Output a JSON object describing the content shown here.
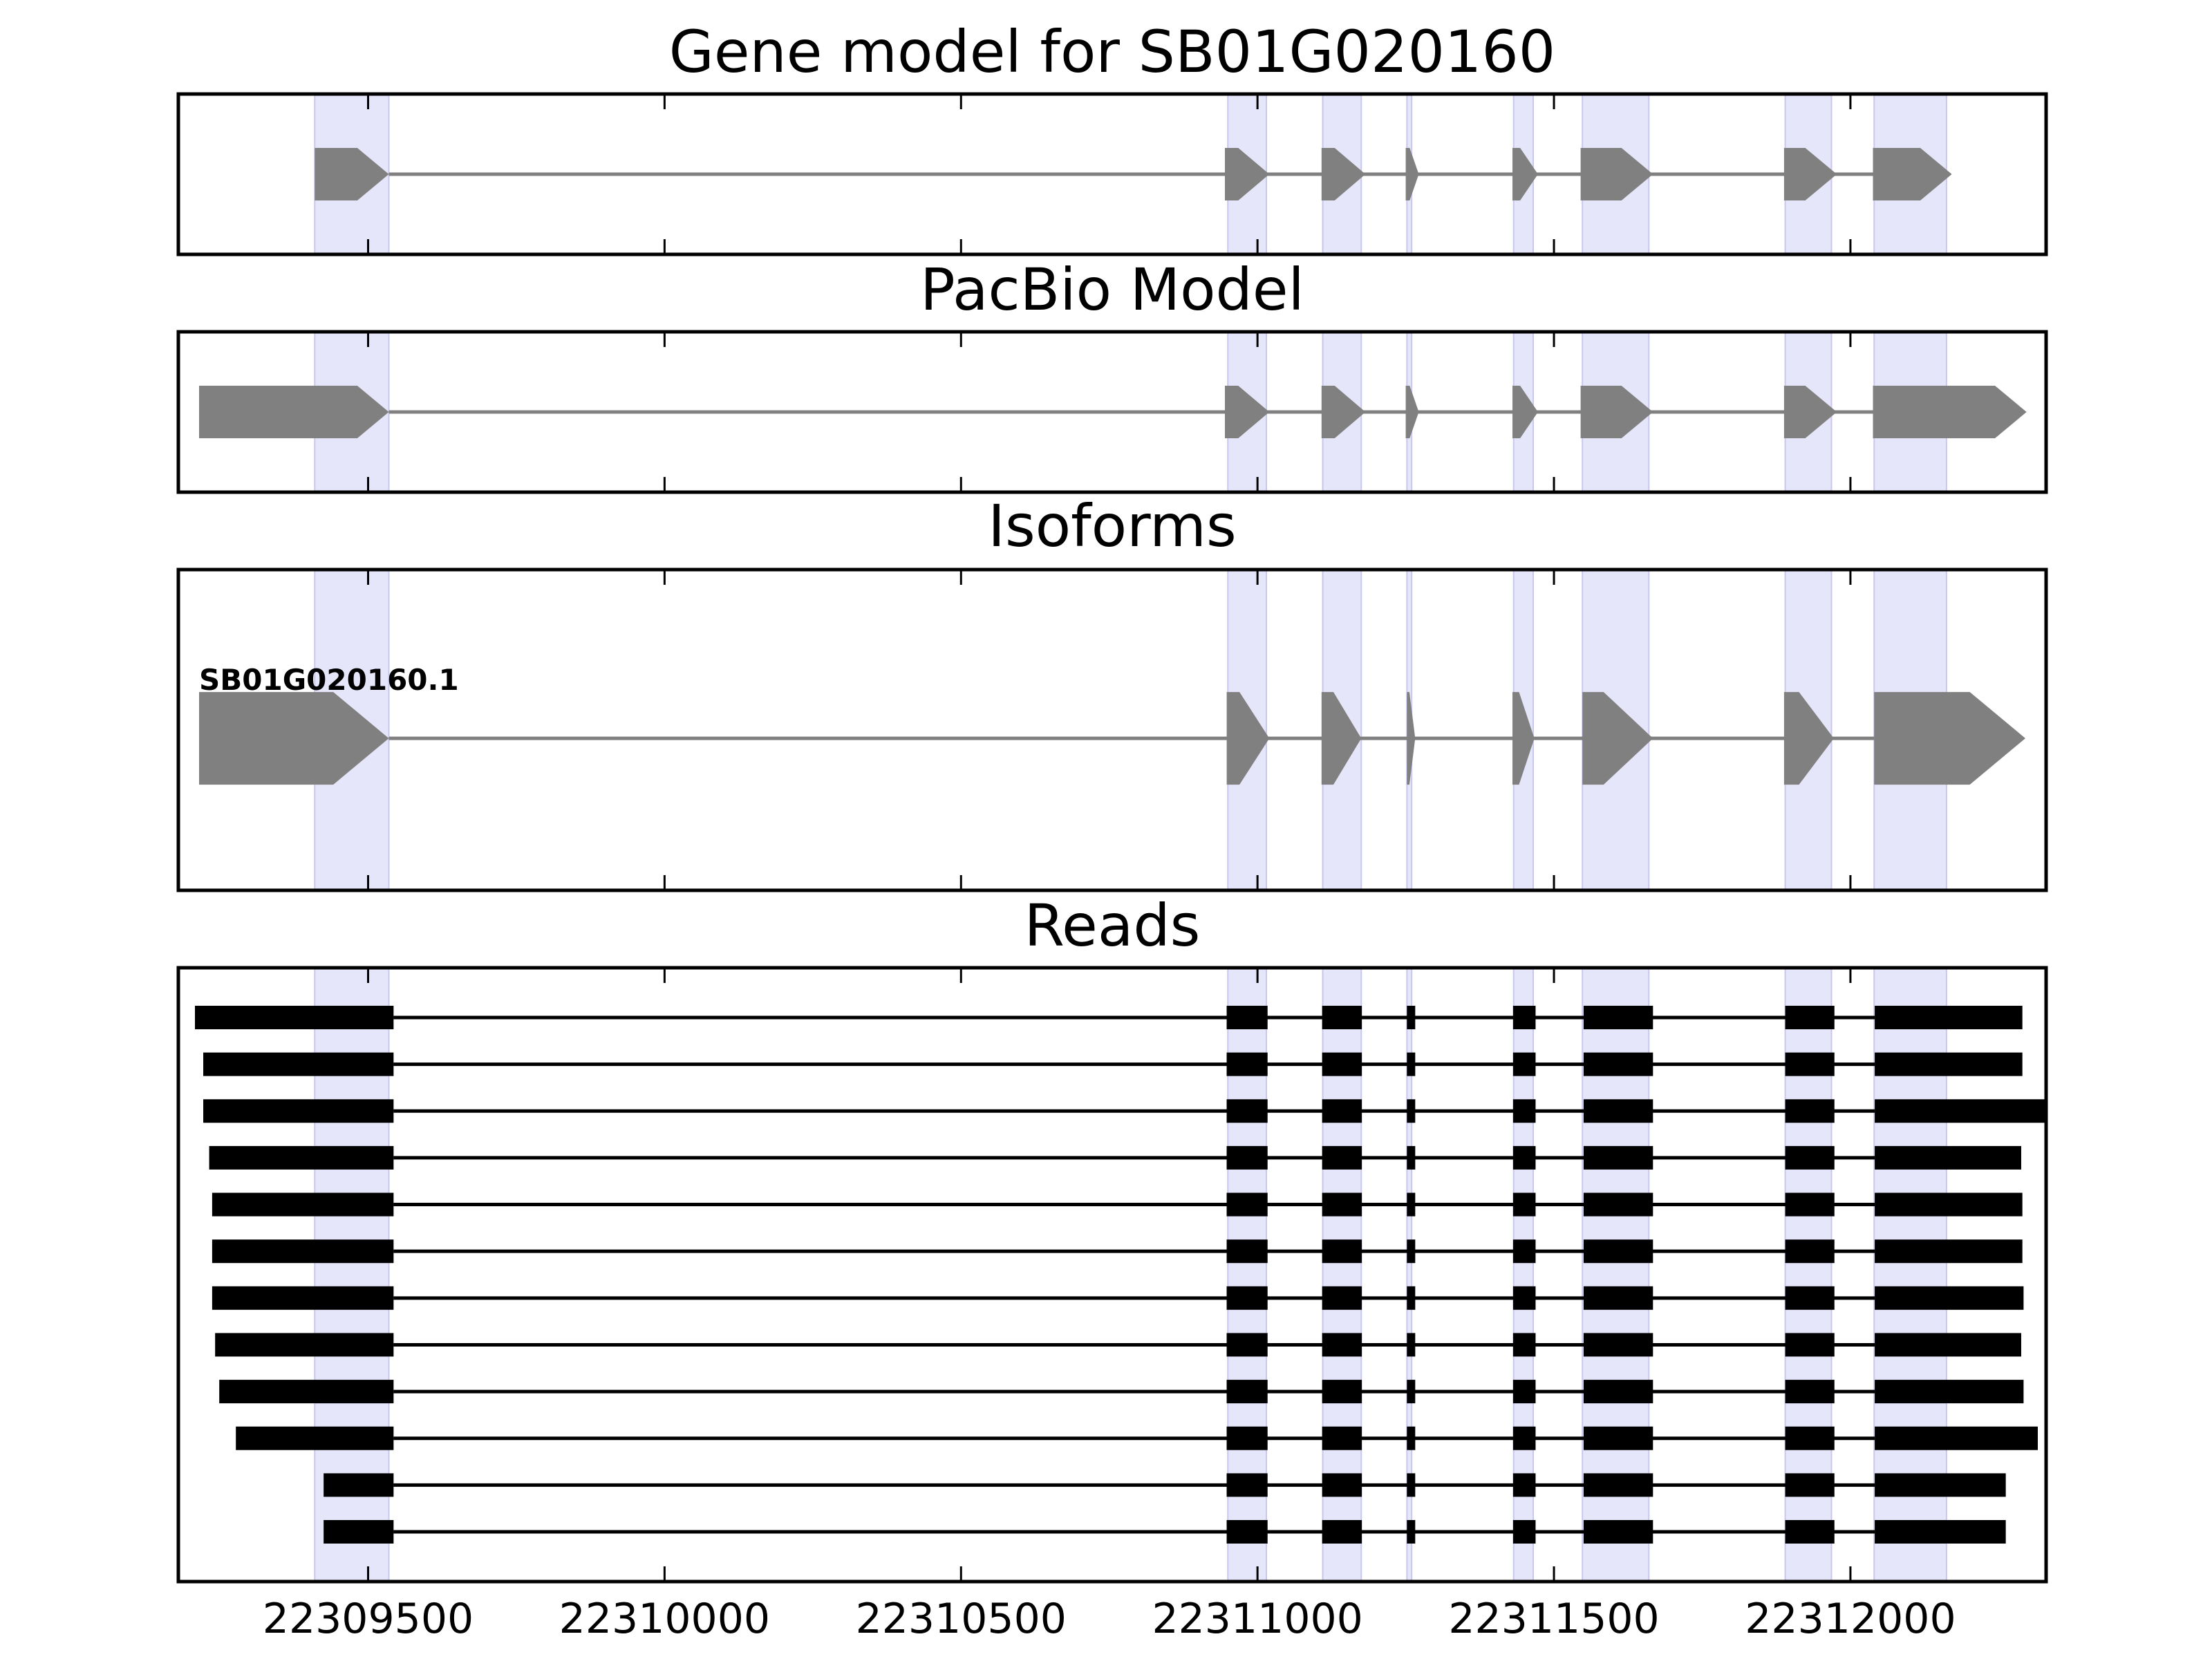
{
  "chart_data": {
    "type": "gene-track",
    "xlim": [
      22309180,
      22312330
    ],
    "x_ticks": [
      22309500,
      22310000,
      22310500,
      22311000,
      22311500,
      22312000
    ],
    "x_tick_labels": [
      "22309500",
      "22310000",
      "22310500",
      "22311000",
      "22311500",
      "22312000"
    ],
    "strand": "+",
    "colors": {
      "highlight": "#e6e6fa",
      "model_fill": "#808080",
      "read_fill": "#000000",
      "intron": "#808080"
    },
    "highlight_regions": [
      [
        22309410,
        22309535
      ],
      [
        22310950,
        22311015
      ],
      [
        22311110,
        22311175
      ],
      [
        22311252,
        22311260
      ],
      [
        22311432,
        22311465
      ],
      [
        22311548,
        22311660
      ],
      [
        22311890,
        22311968
      ],
      [
        22312040,
        22312162
      ]
    ],
    "panels": [
      {
        "title": "Gene model for SB01G020160",
        "kind": "model",
        "exons": [
          [
            22309410,
            22309535
          ],
          [
            22310945,
            22311020
          ],
          [
            22311108,
            22311182
          ],
          [
            22311250,
            22311272
          ],
          [
            22311430,
            22311473
          ],
          [
            22311545,
            22311667
          ],
          [
            22311888,
            22311977
          ],
          [
            22312038,
            22312171
          ]
        ]
      },
      {
        "title": "PacBio Model",
        "kind": "model",
        "exons": [
          [
            22309215,
            22309535
          ],
          [
            22310945,
            22311020
          ],
          [
            22311108,
            22311182
          ],
          [
            22311250,
            22311272
          ],
          [
            22311430,
            22311473
          ],
          [
            22311545,
            22311667
          ],
          [
            22311888,
            22311977
          ],
          [
            22312038,
            22312297
          ]
        ]
      },
      {
        "title": "Isoforms",
        "kind": "isoforms",
        "isoforms": [
          {
            "name": "SB01G020160.1",
            "exons": [
              [
                22309215,
                22309535
              ],
              [
                22310948,
                22311020
              ],
              [
                22311108,
                22311175
              ],
              [
                22311252,
                22311266
              ],
              [
                22311430,
                22311467
              ],
              [
                22311548,
                22311667
              ],
              [
                22311888,
                22311972
              ],
              [
                22312040,
                22312295
              ]
            ]
          }
        ]
      },
      {
        "title": "Reads",
        "kind": "reads",
        "reads": [
          [
            [
              22309208,
              22309543
            ],
            [
              22310948,
              22311017
            ],
            [
              22311109,
              22311176
            ],
            [
              22311252,
              22311266
            ],
            [
              22311431,
              22311469
            ],
            [
              22311550,
              22311667
            ],
            [
              22311890,
              22311973
            ],
            [
              22312041,
              22312290
            ]
          ],
          [
            [
              22309222,
              22309543
            ],
            [
              22310948,
              22311017
            ],
            [
              22311109,
              22311176
            ],
            [
              22311252,
              22311266
            ],
            [
              22311431,
              22311469
            ],
            [
              22311550,
              22311667
            ],
            [
              22311890,
              22311973
            ],
            [
              22312041,
              22312290
            ]
          ],
          [
            [
              22309222,
              22309543
            ],
            [
              22310948,
              22311017
            ],
            [
              22311109,
              22311176
            ],
            [
              22311252,
              22311266
            ],
            [
              22311431,
              22311469
            ],
            [
              22311550,
              22311667
            ],
            [
              22311890,
              22311973
            ],
            [
              22312041,
              22312330
            ]
          ],
          [
            [
              22309232,
              22309543
            ],
            [
              22310948,
              22311017
            ],
            [
              22311109,
              22311176
            ],
            [
              22311252,
              22311266
            ],
            [
              22311431,
              22311469
            ],
            [
              22311550,
              22311667
            ],
            [
              22311890,
              22311973
            ],
            [
              22312041,
              22312288
            ]
          ],
          [
            [
              22309237,
              22309543
            ],
            [
              22310948,
              22311017
            ],
            [
              22311109,
              22311176
            ],
            [
              22311252,
              22311266
            ],
            [
              22311431,
              22311469
            ],
            [
              22311550,
              22311667
            ],
            [
              22311890,
              22311973
            ],
            [
              22312041,
              22312290
            ]
          ],
          [
            [
              22309237,
              22309543
            ],
            [
              22310948,
              22311017
            ],
            [
              22311109,
              22311176
            ],
            [
              22311252,
              22311266
            ],
            [
              22311431,
              22311469
            ],
            [
              22311550,
              22311667
            ],
            [
              22311890,
              22311973
            ],
            [
              22312041,
              22312290
            ]
          ],
          [
            [
              22309237,
              22309543
            ],
            [
              22310948,
              22311017
            ],
            [
              22311109,
              22311176
            ],
            [
              22311252,
              22311266
            ],
            [
              22311431,
              22311469
            ],
            [
              22311550,
              22311667
            ],
            [
              22311890,
              22311973
            ],
            [
              22312041,
              22312292
            ]
          ],
          [
            [
              22309242,
              22309543
            ],
            [
              22310948,
              22311017
            ],
            [
              22311109,
              22311176
            ],
            [
              22311252,
              22311266
            ],
            [
              22311431,
              22311469
            ],
            [
              22311550,
              22311667
            ],
            [
              22311890,
              22311973
            ],
            [
              22312041,
              22312288
            ]
          ],
          [
            [
              22309249,
              22309543
            ],
            [
              22310948,
              22311017
            ],
            [
              22311109,
              22311176
            ],
            [
              22311252,
              22311266
            ],
            [
              22311431,
              22311469
            ],
            [
              22311550,
              22311667
            ],
            [
              22311890,
              22311973
            ],
            [
              22312041,
              22312292
            ]
          ],
          [
            [
              22309277,
              22309543
            ],
            [
              22310948,
              22311017
            ],
            [
              22311109,
              22311176
            ],
            [
              22311252,
              22311266
            ],
            [
              22311431,
              22311469
            ],
            [
              22311550,
              22311667
            ],
            [
              22311890,
              22311973
            ],
            [
              22312041,
              22312316
            ]
          ],
          [
            [
              22309425,
              22309543
            ],
            [
              22310948,
              22311017
            ],
            [
              22311109,
              22311176
            ],
            [
              22311252,
              22311266
            ],
            [
              22311431,
              22311469
            ],
            [
              22311550,
              22311667
            ],
            [
              22311890,
              22311973
            ],
            [
              22312041,
              22312262
            ]
          ],
          [
            [
              22309425,
              22309543
            ],
            [
              22310948,
              22311017
            ],
            [
              22311109,
              22311176
            ],
            [
              22311252,
              22311266
            ],
            [
              22311431,
              22311469
            ],
            [
              22311550,
              22311667
            ],
            [
              22311890,
              22311973
            ],
            [
              22312041,
              22312262
            ]
          ]
        ]
      }
    ]
  }
}
